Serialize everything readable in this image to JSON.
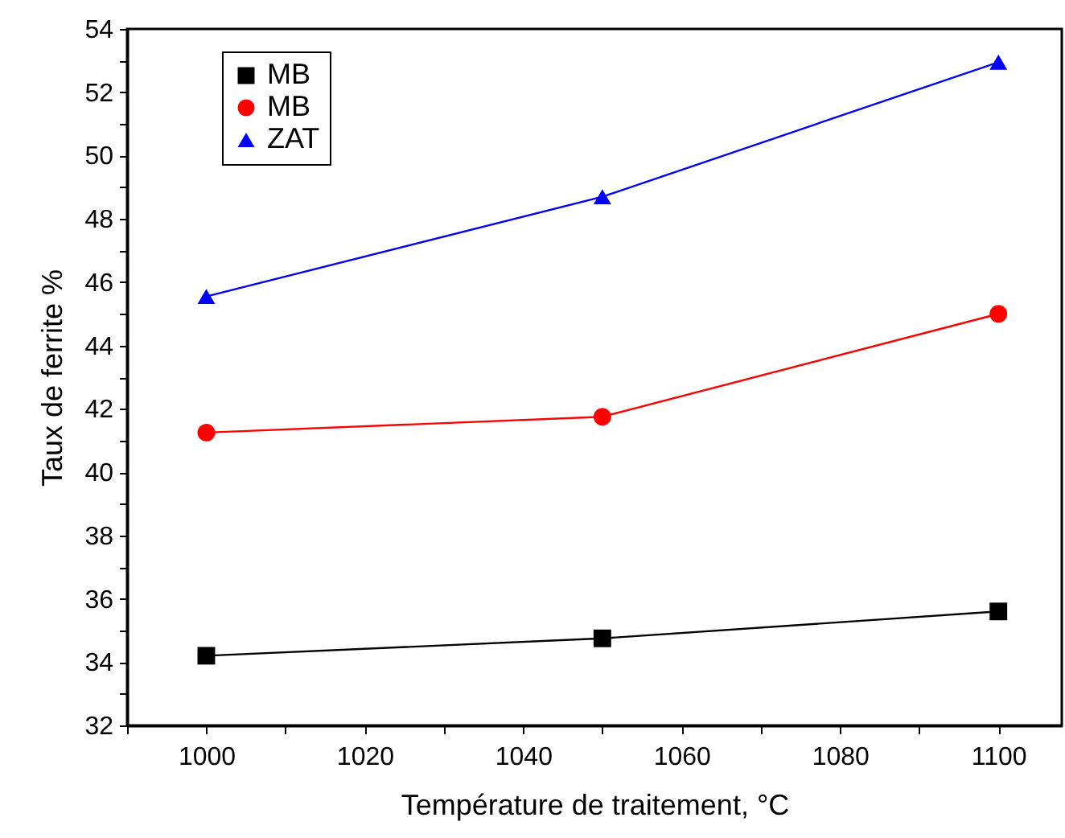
{
  "chart_data": {
    "type": "line",
    "xlabel": "Température de traitement, °C",
    "ylabel": "Taux de ferrite %",
    "x": [
      1000,
      1050,
      1100
    ],
    "series": [
      {
        "name": "MB",
        "color": "#000000",
        "marker": "square",
        "values": [
          34.2,
          34.75,
          35.6
        ]
      },
      {
        "name": "MB",
        "color": "#ff0000",
        "marker": "circle",
        "values": [
          41.25,
          41.75,
          45.0
        ]
      },
      {
        "name": "ZAT",
        "color": "#0000ff",
        "marker": "triangle",
        "values": [
          45.55,
          48.7,
          52.95
        ]
      }
    ],
    "xlim": [
      990,
      1108
    ],
    "xticks": [
      {
        "value": 990,
        "label": null
      },
      1000,
      {
        "value": 1010,
        "label": null
      },
      1020,
      {
        "value": 1030,
        "label": null
      },
      1040,
      {
        "value": 1050,
        "label": null
      },
      1060,
      {
        "value": 1070,
        "label": null
      },
      1080,
      {
        "value": 1090,
        "label": null
      },
      1100
    ],
    "ylim": [
      32,
      54
    ],
    "yticks": [
      32,
      {
        "value": 33,
        "label": null
      },
      34,
      {
        "value": 35,
        "label": null
      },
      36,
      {
        "value": 37,
        "label": null
      },
      38,
      {
        "value": 39,
        "label": null
      },
      40,
      {
        "value": 41,
        "label": null
      },
      42,
      {
        "value": 43,
        "label": null
      },
      44,
      {
        "value": 45,
        "label": null
      },
      46,
      {
        "value": 47,
        "label": null
      },
      48,
      {
        "value": 49,
        "label": null
      },
      50,
      {
        "value": 51,
        "label": null
      },
      52,
      {
        "value": 53,
        "label": null
      },
      54
    ],
    "grid": false,
    "legend": "top left"
  }
}
